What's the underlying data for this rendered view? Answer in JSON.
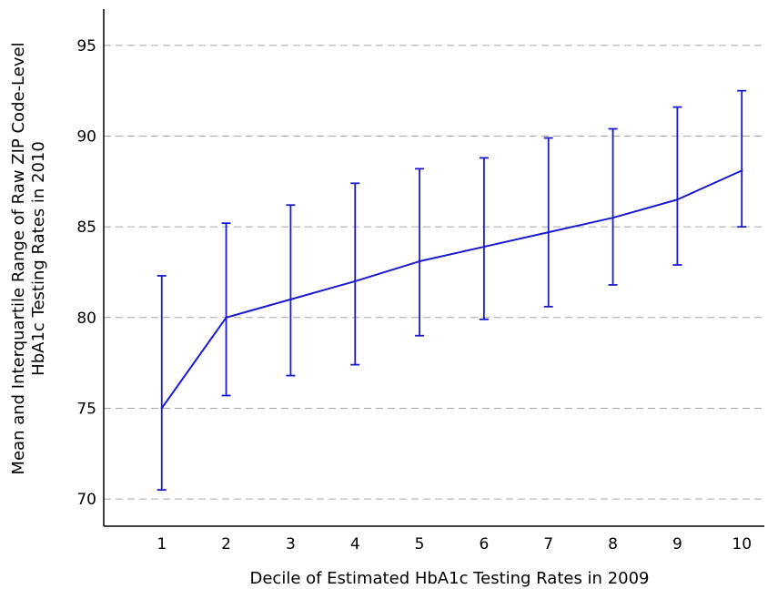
{
  "chart_data": {
    "type": "line",
    "title": "",
    "xlabel": "Decile of Estimated HbA1c Testing Rates in 2009",
    "ylabel": [
      "Mean and Interquartile Range of Raw ZIP Code-Level",
      "HbA1c Testing Rates in 2010"
    ],
    "x": [
      1,
      2,
      3,
      4,
      5,
      6,
      7,
      8,
      9,
      10
    ],
    "xticks": [
      "1",
      "2",
      "3",
      "4",
      "5",
      "6",
      "7",
      "8",
      "9",
      "10"
    ],
    "xlim": [
      0.1,
      10.35
    ],
    "ylim": [
      68.5,
      97
    ],
    "yticks": [
      70,
      75,
      80,
      85,
      90,
      95
    ],
    "grid": "horizontal-dashed",
    "series": [
      {
        "values": [
          75.0,
          80.0,
          81.0,
          82.0,
          83.1,
          83.9,
          84.7,
          85.5,
          86.5,
          88.1
        ],
        "lower": [
          70.5,
          75.7,
          76.8,
          77.4,
          79.0,
          79.9,
          80.6,
          81.8,
          82.9,
          85.0
        ],
        "upper": [
          82.3,
          85.2,
          86.2,
          87.4,
          88.2,
          88.8,
          89.9,
          90.4,
          91.6,
          92.5
        ],
        "color": "#1a1acc"
      }
    ],
    "colors": {
      "line": "#1a1acc",
      "grid": "#a6a6a6",
      "axis": "#000000"
    }
  }
}
